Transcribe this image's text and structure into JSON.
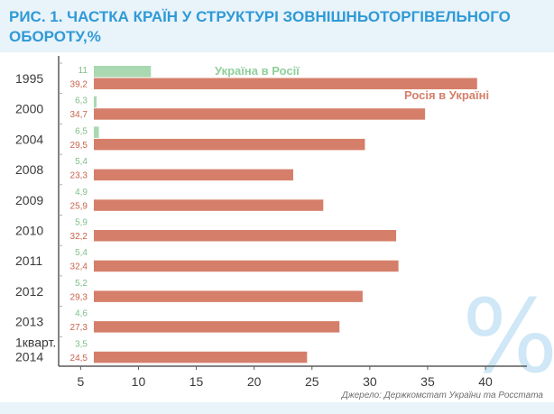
{
  "title": "РИС. 1. ЧАСТКА КРАЇН У СТРУКТУРІ ЗОВНІШНЬОТОРГІВЕЛЬНОГО ОБОРОТУ,%",
  "source": "Джерело: Держкомстат України та Росстата",
  "decor_symbol": "%",
  "colors": {
    "ukraine_in_russia": "#a9d8b1",
    "russia_in_ukraine": "#d57f6a",
    "title": "#2f9ad6",
    "header_bg": "#e9f3fa"
  },
  "chart_data": {
    "type": "bar",
    "orientation": "horizontal",
    "categories": [
      "1995",
      "2000",
      "2004",
      "2008",
      "2009",
      "2010",
      "2011",
      "2012",
      "2013",
      "1кварт. 2014"
    ],
    "category_lines": [
      [
        "1995"
      ],
      [
        "2000"
      ],
      [
        "2004"
      ],
      [
        "2008"
      ],
      [
        "2009"
      ],
      [
        "2010"
      ],
      [
        "2011"
      ],
      [
        "2012"
      ],
      [
        "2013"
      ],
      [
        "1кварт.",
        "2014"
      ]
    ],
    "series": [
      {
        "name": "Україна в Росії",
        "color": "#a9d8b1",
        "values": [
          11,
          6.3,
          6.5,
          5.4,
          4.9,
          5.9,
          5.4,
          5.2,
          4.6,
          3.5
        ],
        "labels": [
          "11",
          "6,3",
          "6,5",
          "5,4",
          "4,9",
          "5,9",
          "5,4",
          "5,2",
          "4,6",
          "3,5"
        ]
      },
      {
        "name": "Росія в Україні",
        "color": "#d57f6a",
        "values": [
          39.2,
          34.7,
          29.5,
          23.3,
          25.9,
          32.2,
          32.4,
          29.3,
          27.3,
          24.5
        ],
        "labels": [
          "39,2",
          "34,7",
          "29,5",
          "23,3",
          "25,9",
          "32,2",
          "32,4",
          "29,3",
          "27,3",
          "24,5"
        ]
      }
    ],
    "xticks": [
      5,
      10,
      15,
      20,
      25,
      30,
      35,
      40
    ],
    "xlim": [
      3,
      40
    ],
    "grid": false
  }
}
